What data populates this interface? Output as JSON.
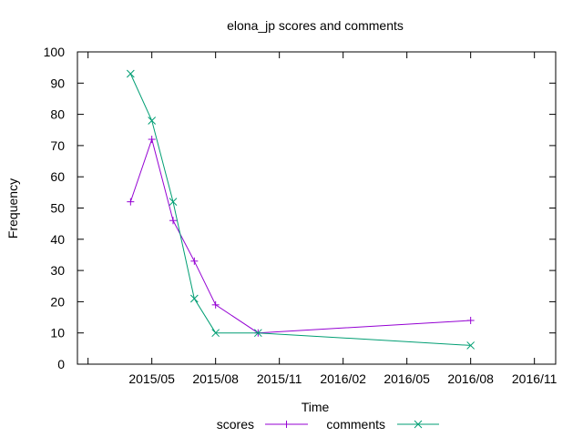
{
  "chart_data": {
    "type": "line",
    "title": "elona_jp scores and comments",
    "xlabel": "Time",
    "ylabel": "Frequency",
    "x_ticks": [
      "2015/02",
      "2015/05",
      "2015/08",
      "2015/11",
      "2016/02",
      "2016/05",
      "2016/08",
      "2016/11"
    ],
    "x_tick_labels": [
      "2015/05",
      "2015/08",
      "2015/11",
      "2016/02",
      "2016/05",
      "2016/08",
      "2016/11"
    ],
    "ylim": [
      0,
      100
    ],
    "y_ticks": [
      0,
      10,
      20,
      30,
      40,
      50,
      60,
      70,
      80,
      90,
      100
    ],
    "grid": false,
    "legend_position": "bottom-center",
    "series": [
      {
        "name": "scores",
        "color": "#9400d3",
        "marker": "plus",
        "points": [
          {
            "x": "2015/04",
            "y": 52
          },
          {
            "x": "2015/05",
            "y": 72
          },
          {
            "x": "2015/06",
            "y": 46
          },
          {
            "x": "2015/07",
            "y": 33
          },
          {
            "x": "2015/08",
            "y": 19
          },
          {
            "x": "2015/10",
            "y": 10
          },
          {
            "x": "2016/08",
            "y": 14
          }
        ]
      },
      {
        "name": "comments",
        "color": "#009e73",
        "marker": "cross",
        "points": [
          {
            "x": "2015/04",
            "y": 93
          },
          {
            "x": "2015/05",
            "y": 78
          },
          {
            "x": "2015/06",
            "y": 52
          },
          {
            "x": "2015/07",
            "y": 21
          },
          {
            "x": "2015/08",
            "y": 10
          },
          {
            "x": "2015/10",
            "y": 10
          },
          {
            "x": "2016/08",
            "y": 6
          }
        ]
      }
    ]
  }
}
